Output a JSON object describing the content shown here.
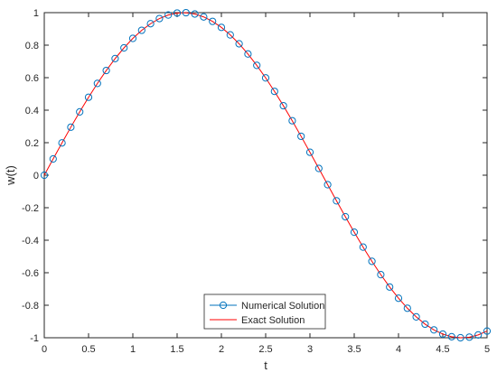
{
  "chart_data": {
    "type": "line",
    "title": "",
    "xlabel": "t",
    "ylabel": "w(t)",
    "xlim": [
      0,
      5
    ],
    "ylim": [
      -1,
      1
    ],
    "xticks": [
      0,
      0.5,
      1,
      1.5,
      2,
      2.5,
      3,
      3.5,
      4,
      4.5,
      5
    ],
    "xtick_labels": [
      "0",
      "0.5",
      "1",
      "1.5",
      "2",
      "2.5",
      "3",
      "3.5",
      "4",
      "4.5",
      "5"
    ],
    "yticks": [
      -1,
      -0.8,
      -0.6,
      -0.4,
      -0.2,
      0,
      0.2,
      0.4,
      0.6,
      0.8,
      1
    ],
    "ytick_labels": [
      "-1",
      "-0.8",
      "-0.6",
      "-0.4",
      "-0.2",
      "0",
      "0.2",
      "0.4",
      "0.6",
      "0.8",
      "1"
    ],
    "grid": false,
    "legend": {
      "position": "bottom-center",
      "entries": [
        "Numerical Solution",
        "Exact Solution"
      ]
    },
    "series": [
      {
        "name": "Numerical Solution",
        "style": "markers",
        "color": "#0072bd",
        "marker": "circle",
        "x": [
          0,
          0.1,
          0.2,
          0.3,
          0.4,
          0.5,
          0.6,
          0.7,
          0.8,
          0.9,
          1.0,
          1.1,
          1.2,
          1.3,
          1.4,
          1.5,
          1.6,
          1.7,
          1.8,
          1.9,
          2.0,
          2.1,
          2.2,
          2.3,
          2.4,
          2.5,
          2.6,
          2.7,
          2.8,
          2.9,
          3.0,
          3.1,
          3.2,
          3.3,
          3.4,
          3.5,
          3.6,
          3.7,
          3.8,
          3.9,
          4.0,
          4.1,
          4.2,
          4.3,
          4.4,
          4.5,
          4.6,
          4.7,
          4.8,
          4.9,
          5.0
        ],
        "y": [
          0,
          0.0998,
          0.1987,
          0.2955,
          0.3894,
          0.4794,
          0.5646,
          0.6442,
          0.7174,
          0.7833,
          0.8415,
          0.8912,
          0.932,
          0.9636,
          0.9854,
          0.9975,
          0.9996,
          0.9917,
          0.9738,
          0.9463,
          0.9093,
          0.8632,
          0.8085,
          0.7457,
          0.6755,
          0.5985,
          0.5155,
          0.4274,
          0.335,
          0.2392,
          0.1411,
          0.0416,
          -0.0584,
          -0.1577,
          -0.2555,
          -0.3508,
          -0.4425,
          -0.5298,
          -0.6119,
          -0.6878,
          -0.7568,
          -0.8183,
          -0.8716,
          -0.9162,
          -0.9516,
          -0.9775,
          -0.9937,
          -0.9999,
          -0.9962,
          -0.9825,
          -0.9589
        ]
      },
      {
        "name": "Exact Solution",
        "style": "line",
        "color": "#ff0000",
        "x": [
          0,
          0.1,
          0.2,
          0.3,
          0.4,
          0.5,
          0.6,
          0.7,
          0.8,
          0.9,
          1.0,
          1.1,
          1.2,
          1.3,
          1.4,
          1.5,
          1.6,
          1.7,
          1.8,
          1.9,
          2.0,
          2.1,
          2.2,
          2.3,
          2.4,
          2.5,
          2.6,
          2.7,
          2.8,
          2.9,
          3.0,
          3.1,
          3.2,
          3.3,
          3.4,
          3.5,
          3.6,
          3.7,
          3.8,
          3.9,
          4.0,
          4.1,
          4.2,
          4.3,
          4.4,
          4.5,
          4.6,
          4.7,
          4.8,
          4.9,
          5.0
        ],
        "y": [
          0,
          0.0998,
          0.1987,
          0.2955,
          0.3894,
          0.4794,
          0.5646,
          0.6442,
          0.7174,
          0.7833,
          0.8415,
          0.8912,
          0.932,
          0.9636,
          0.9854,
          0.9975,
          0.9996,
          0.9917,
          0.9738,
          0.9463,
          0.9093,
          0.8632,
          0.8085,
          0.7457,
          0.6755,
          0.5985,
          0.5155,
          0.4274,
          0.335,
          0.2392,
          0.1411,
          0.0416,
          -0.0584,
          -0.1577,
          -0.2555,
          -0.3508,
          -0.4425,
          -0.5298,
          -0.6119,
          -0.6878,
          -0.7568,
          -0.8183,
          -0.8716,
          -0.9162,
          -0.9516,
          -0.9775,
          -0.9937,
          -0.9999,
          -0.9962,
          -0.9825,
          -0.9589
        ]
      }
    ]
  }
}
